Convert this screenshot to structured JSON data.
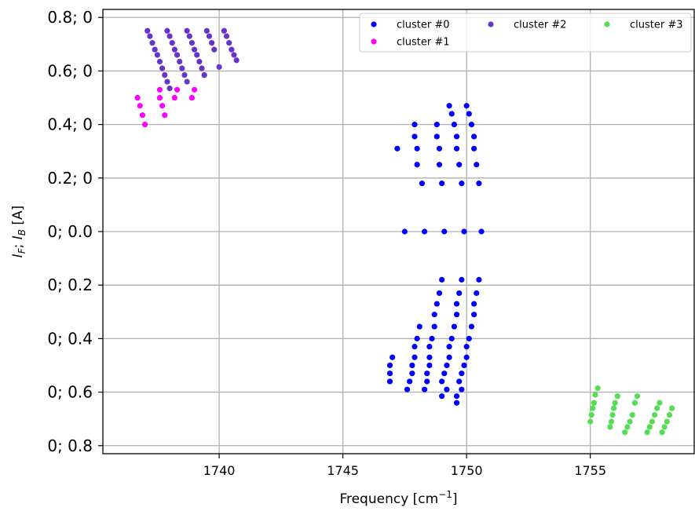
{
  "chart_data": {
    "type": "scatter",
    "xlabel": "Frequency [cm",
    "xlabel_sup": "−1",
    "xlabel_end": "]",
    "ylabel_parts": [
      "I",
      "F",
      "; ",
      "I",
      "B",
      " [A]"
    ],
    "xlim": [
      1735.3,
      1759.2
    ],
    "ylim": [
      -0.83,
      0.83
    ],
    "xticks": [
      1740,
      1745,
      1750,
      1755
    ],
    "yticks": [
      {
        "v": 0.8,
        "label": "0.8; 0"
      },
      {
        "v": 0.6,
        "label": "0.6; 0"
      },
      {
        "v": 0.4,
        "label": "0.4; 0"
      },
      {
        "v": 0.2,
        "label": "0.2; 0"
      },
      {
        "v": 0.0,
        "label": "0; 0.0"
      },
      {
        "v": -0.2,
        "label": "0; 0.2"
      },
      {
        "v": -0.4,
        "label": "0; 0.4"
      },
      {
        "v": -0.6,
        "label": "0; 0.6"
      },
      {
        "v": -0.8,
        "label": "0; 0.8"
      }
    ],
    "grid": true,
    "legend_position": "upper-right",
    "series": [
      {
        "name": "cluster #0",
        "color": "#0000ff",
        "points": [
          [
            1749.3,
            0.47
          ],
          [
            1750.0,
            0.47
          ],
          [
            1749.4,
            0.44
          ],
          [
            1750.1,
            0.44
          ],
          [
            1747.9,
            0.4
          ],
          [
            1748.8,
            0.4
          ],
          [
            1749.5,
            0.4
          ],
          [
            1750.2,
            0.4
          ],
          [
            1747.9,
            0.355
          ],
          [
            1748.8,
            0.355
          ],
          [
            1749.6,
            0.355
          ],
          [
            1750.3,
            0.355
          ],
          [
            1747.2,
            0.31
          ],
          [
            1748.0,
            0.31
          ],
          [
            1748.9,
            0.31
          ],
          [
            1749.6,
            0.31
          ],
          [
            1750.3,
            0.31
          ],
          [
            1748.0,
            0.25
          ],
          [
            1748.9,
            0.25
          ],
          [
            1749.7,
            0.25
          ],
          [
            1750.4,
            0.25
          ],
          [
            1748.2,
            0.18
          ],
          [
            1749.0,
            0.18
          ],
          [
            1749.8,
            0.18
          ],
          [
            1750.5,
            0.18
          ],
          [
            1747.5,
            0.0
          ],
          [
            1748.3,
            0.0
          ],
          [
            1749.1,
            0.0
          ],
          [
            1749.9,
            0.0
          ],
          [
            1750.6,
            0.0
          ],
          [
            1749.0,
            -0.18
          ],
          [
            1749.8,
            -0.18
          ],
          [
            1750.5,
            -0.18
          ],
          [
            1748.9,
            -0.23
          ],
          [
            1749.7,
            -0.23
          ],
          [
            1750.4,
            -0.23
          ],
          [
            1748.8,
            -0.27
          ],
          [
            1749.6,
            -0.27
          ],
          [
            1750.3,
            -0.27
          ],
          [
            1748.7,
            -0.31
          ],
          [
            1749.6,
            -0.31
          ],
          [
            1750.3,
            -0.31
          ],
          [
            1748.1,
            -0.355
          ],
          [
            1748.7,
            -0.355
          ],
          [
            1749.5,
            -0.355
          ],
          [
            1750.2,
            -0.355
          ],
          [
            1748.0,
            -0.4
          ],
          [
            1748.6,
            -0.4
          ],
          [
            1749.4,
            -0.4
          ],
          [
            1750.1,
            -0.4
          ],
          [
            1747.9,
            -0.43
          ],
          [
            1748.5,
            -0.43
          ],
          [
            1749.3,
            -0.43
          ],
          [
            1750.0,
            -0.43
          ],
          [
            1747.0,
            -0.47
          ],
          [
            1747.9,
            -0.47
          ],
          [
            1748.5,
            -0.47
          ],
          [
            1749.3,
            -0.47
          ],
          [
            1750.0,
            -0.47
          ],
          [
            1746.9,
            -0.5
          ],
          [
            1747.8,
            -0.5
          ],
          [
            1748.5,
            -0.5
          ],
          [
            1749.2,
            -0.5
          ],
          [
            1749.9,
            -0.5
          ],
          [
            1746.9,
            -0.53
          ],
          [
            1747.8,
            -0.53
          ],
          [
            1748.4,
            -0.53
          ],
          [
            1749.1,
            -0.53
          ],
          [
            1749.8,
            -0.53
          ],
          [
            1746.9,
            -0.56
          ],
          [
            1747.7,
            -0.56
          ],
          [
            1748.4,
            -0.56
          ],
          [
            1749.0,
            -0.56
          ],
          [
            1749.7,
            -0.56
          ],
          [
            1747.6,
            -0.59
          ],
          [
            1748.3,
            -0.59
          ],
          [
            1749.2,
            -0.59
          ],
          [
            1749.8,
            -0.59
          ],
          [
            1749.0,
            -0.615
          ],
          [
            1749.6,
            -0.615
          ],
          [
            1749.6,
            -0.64
          ]
        ]
      },
      {
        "name": "cluster #1",
        "color": "#ff00ff",
        "points": [
          [
            1736.7,
            0.5
          ],
          [
            1737.6,
            0.5
          ],
          [
            1738.2,
            0.5
          ],
          [
            1738.9,
            0.5
          ],
          [
            1736.8,
            0.47
          ],
          [
            1737.7,
            0.47
          ],
          [
            1737.6,
            0.53
          ],
          [
            1738.3,
            0.53
          ],
          [
            1739.0,
            0.53
          ],
          [
            1736.9,
            0.435
          ],
          [
            1737.8,
            0.435
          ],
          [
            1737.0,
            0.4
          ]
        ]
      },
      {
        "name": "cluster #2",
        "color": "#6633cc",
        "points": [
          [
            1737.1,
            0.75
          ],
          [
            1737.2,
            0.73
          ],
          [
            1737.3,
            0.705
          ],
          [
            1737.4,
            0.68
          ],
          [
            1737.5,
            0.66
          ],
          [
            1737.6,
            0.635
          ],
          [
            1737.7,
            0.61
          ],
          [
            1737.8,
            0.585
          ],
          [
            1737.9,
            0.56
          ],
          [
            1738.0,
            0.535
          ],
          [
            1737.9,
            0.75
          ],
          [
            1738.0,
            0.73
          ],
          [
            1738.1,
            0.705
          ],
          [
            1738.2,
            0.68
          ],
          [
            1738.3,
            0.66
          ],
          [
            1738.4,
            0.635
          ],
          [
            1738.5,
            0.61
          ],
          [
            1738.6,
            0.585
          ],
          [
            1738.7,
            0.56
          ],
          [
            1738.7,
            0.75
          ],
          [
            1738.8,
            0.73
          ],
          [
            1738.9,
            0.705
          ],
          [
            1739.0,
            0.68
          ],
          [
            1739.1,
            0.66
          ],
          [
            1739.2,
            0.635
          ],
          [
            1739.3,
            0.61
          ],
          [
            1739.4,
            0.585
          ],
          [
            1739.5,
            0.75
          ],
          [
            1739.6,
            0.73
          ],
          [
            1739.7,
            0.705
          ],
          [
            1739.8,
            0.68
          ],
          [
            1740.0,
            0.615
          ],
          [
            1740.2,
            0.75
          ],
          [
            1740.3,
            0.73
          ],
          [
            1740.4,
            0.705
          ],
          [
            1740.5,
            0.68
          ],
          [
            1740.6,
            0.66
          ],
          [
            1740.7,
            0.64
          ]
        ]
      },
      {
        "name": "cluster #3",
        "color": "#55dd55",
        "points": [
          [
            1755.3,
            -0.585
          ],
          [
            1755.2,
            -0.61
          ],
          [
            1755.15,
            -0.64
          ],
          [
            1755.1,
            -0.66
          ],
          [
            1755.05,
            -0.685
          ],
          [
            1755.0,
            -0.71
          ],
          [
            1756.1,
            -0.615
          ],
          [
            1756.0,
            -0.64
          ],
          [
            1755.95,
            -0.66
          ],
          [
            1755.9,
            -0.685
          ],
          [
            1755.85,
            -0.71
          ],
          [
            1755.8,
            -0.73
          ],
          [
            1756.9,
            -0.615
          ],
          [
            1756.8,
            -0.64
          ],
          [
            1756.7,
            -0.685
          ],
          [
            1756.6,
            -0.71
          ],
          [
            1756.5,
            -0.73
          ],
          [
            1756.4,
            -0.75
          ],
          [
            1757.8,
            -0.64
          ],
          [
            1757.7,
            -0.66
          ],
          [
            1757.6,
            -0.685
          ],
          [
            1757.5,
            -0.71
          ],
          [
            1757.4,
            -0.73
          ],
          [
            1757.3,
            -0.75
          ],
          [
            1758.3,
            -0.66
          ],
          [
            1758.2,
            -0.685
          ],
          [
            1758.1,
            -0.71
          ],
          [
            1758.0,
            -0.73
          ],
          [
            1757.9,
            -0.75
          ]
        ]
      }
    ]
  }
}
